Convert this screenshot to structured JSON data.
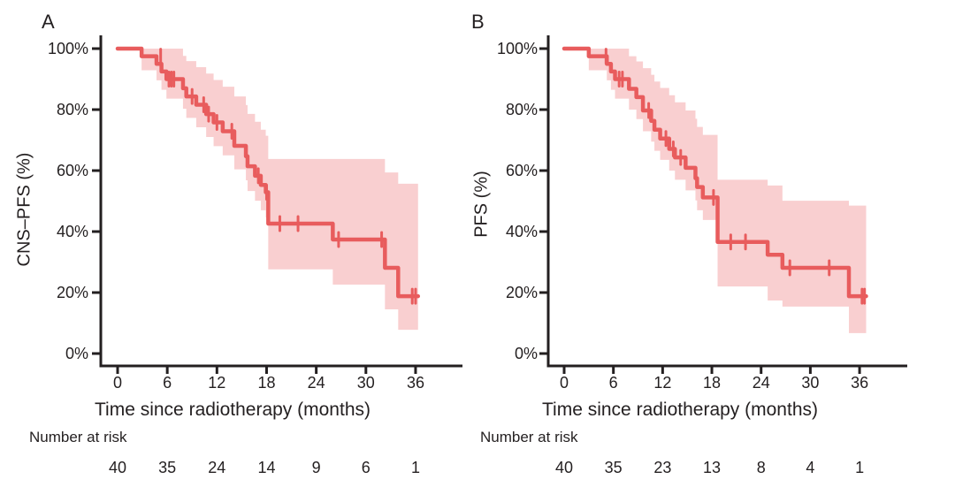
{
  "colors": {
    "curve": "#e85c5d",
    "band": "#f9cfd0",
    "axis": "#231f20",
    "text": "#231f20",
    "background": "#ffffff"
  },
  "chart_data": [
    {
      "type": "line",
      "subtype": "kaplan-meier-step",
      "panel_label": "A",
      "ylabel": "CNS–PFS (%)",
      "xlabel": "Time since radiotherapy (months)",
      "xlim": [
        0,
        36
      ],
      "ylim": [
        0,
        100
      ],
      "xticks": [
        0,
        6,
        12,
        18,
        24,
        30,
        36
      ],
      "yticks": [
        100,
        80,
        60,
        40,
        20,
        0
      ],
      "ytick_labels": [
        "100%",
        "80%",
        "60%",
        "40%",
        "20%",
        "0%"
      ],
      "grid": false,
      "steps": [
        [
          0,
          100
        ],
        [
          2.9,
          97.5
        ],
        [
          4.7,
          95
        ],
        [
          5.3,
          92.5
        ],
        [
          5.9,
          90
        ],
        [
          7.9,
          87
        ],
        [
          8.3,
          84.3
        ],
        [
          9.5,
          81.6
        ],
        [
          10.7,
          78.5
        ],
        [
          11.6,
          75.8
        ],
        [
          12.7,
          72.9
        ],
        [
          14.1,
          68.1
        ],
        [
          15.5,
          64.7
        ],
        [
          15.7,
          61.4
        ],
        [
          16.6,
          58.3
        ],
        [
          17.3,
          55.3
        ],
        [
          17.9,
          52.9
        ],
        [
          18.2,
          42.6
        ],
        [
          26,
          37.4
        ],
        [
          32.3,
          28.1
        ],
        [
          33.9,
          18.8
        ]
      ],
      "curve_end_t": 36.3,
      "censors": [
        [
          5.2,
          97.5
        ],
        [
          6.2,
          90
        ],
        [
          6.5,
          90
        ],
        [
          6.8,
          90
        ],
        [
          9,
          84.3
        ],
        [
          10.4,
          81.6
        ],
        [
          11,
          78.5
        ],
        [
          12,
          75.8
        ],
        [
          13.8,
          72.9
        ],
        [
          17,
          58.3
        ],
        [
          18,
          52.9
        ],
        [
          19.6,
          42.6
        ],
        [
          21.8,
          42.6
        ],
        [
          26.7,
          37.4
        ],
        [
          31.9,
          37.4
        ],
        [
          35.6,
          18.8
        ],
        [
          36,
          18.8
        ]
      ],
      "band": [
        [
          2.9,
          100,
          92.9
        ],
        [
          4.7,
          100,
          89.6
        ],
        [
          5.3,
          100,
          86.5
        ],
        [
          5.9,
          100,
          83.6
        ],
        [
          7.9,
          97.6,
          80.3
        ],
        [
          8.3,
          95.9,
          77.3
        ],
        [
          9.5,
          93.9,
          74.2
        ],
        [
          10.7,
          91.8,
          71
        ],
        [
          11.6,
          89.7,
          68
        ],
        [
          12.7,
          87.5,
          65
        ],
        [
          14.1,
          84.3,
          60.4
        ],
        [
          15.5,
          81.5,
          56.8
        ],
        [
          15.7,
          78.6,
          53.3
        ],
        [
          16.6,
          76,
          50.1
        ],
        [
          17.3,
          73.4,
          47
        ],
        [
          17.9,
          71.4,
          44.6
        ],
        [
          18.2,
          63.8,
          27.6
        ],
        [
          26,
          63.8,
          22.6
        ],
        [
          32.3,
          59.4,
          14.5
        ],
        [
          33.9,
          55.7,
          7.8
        ]
      ],
      "band_end_t": 36.3,
      "number_at_risk": {
        "label": "Number at risk",
        "times": [
          0,
          6,
          12,
          18,
          24,
          30,
          36
        ],
        "counts": [
          40,
          35,
          24,
          14,
          9,
          6,
          1
        ]
      }
    },
    {
      "type": "line",
      "subtype": "kaplan-meier-step",
      "panel_label": "B",
      "ylabel": "PFS (%)",
      "xlabel": "Time since radiotherapy (months)",
      "xlim": [
        0,
        36
      ],
      "ylim": [
        0,
        100
      ],
      "xticks": [
        0,
        6,
        12,
        18,
        24,
        30,
        36
      ],
      "yticks": [
        100,
        80,
        60,
        40,
        20,
        0
      ],
      "ytick_labels": [
        "100%",
        "80%",
        "60%",
        "40%",
        "20%",
        "0%"
      ],
      "grid": false,
      "steps": [
        [
          0,
          100
        ],
        [
          3,
          97.5
        ],
        [
          5.2,
          95
        ],
        [
          5.7,
          92.5
        ],
        [
          6.2,
          90
        ],
        [
          7.9,
          86.8
        ],
        [
          8.8,
          84.1
        ],
        [
          9.6,
          79.7
        ],
        [
          10.6,
          76.3
        ],
        [
          11,
          73.4
        ],
        [
          11.7,
          70.5
        ],
        [
          12.8,
          67.1
        ],
        [
          13.5,
          64.3
        ],
        [
          14.8,
          60.9
        ],
        [
          16,
          57.5
        ],
        [
          16.2,
          54.6
        ],
        [
          16.9,
          51.2
        ],
        [
          18.7,
          36.6
        ],
        [
          24.8,
          32.4
        ],
        [
          26.6,
          28.1
        ],
        [
          34.7,
          18.8
        ]
      ],
      "curve_end_t": 36.8,
      "censors": [
        [
          5.1,
          97.5
        ],
        [
          6.7,
          90
        ],
        [
          7.1,
          90
        ],
        [
          10.3,
          79.7
        ],
        [
          12.4,
          70.5
        ],
        [
          13.3,
          67.1
        ],
        [
          14.2,
          64.3
        ],
        [
          18.2,
          51.2
        ],
        [
          20.3,
          36.6
        ],
        [
          22.1,
          36.6
        ],
        [
          27.5,
          28.1
        ],
        [
          32.3,
          28.1
        ],
        [
          36.3,
          18.8
        ],
        [
          36.6,
          18.8
        ]
      ],
      "band": [
        [
          3,
          100,
          92.9
        ],
        [
          5.2,
          100,
          89.6
        ],
        [
          5.7,
          100,
          86.5
        ],
        [
          6.2,
          100,
          83.6
        ],
        [
          7.9,
          97.5,
          80
        ],
        [
          8.8,
          95.8,
          76.9
        ],
        [
          9.6,
          93.6,
          72.9
        ],
        [
          10.6,
          91.4,
          69.5
        ],
        [
          11,
          89.2,
          66.5
        ],
        [
          11.7,
          87.1,
          63.5
        ],
        [
          12.8,
          84.7,
          60
        ],
        [
          13.5,
          82.4,
          57
        ],
        [
          14.8,
          79.7,
          53.5
        ],
        [
          16,
          77,
          50.2
        ],
        [
          16.2,
          74.3,
          47
        ],
        [
          16.9,
          71.7,
          43.8
        ],
        [
          18.7,
          57,
          22
        ],
        [
          24.8,
          55.1,
          17.4
        ],
        [
          26.6,
          50.1,
          15.4
        ],
        [
          34.7,
          48.5,
          6.7
        ]
      ],
      "band_end_t": 36.8,
      "number_at_risk": {
        "label": "Number at risk",
        "times": [
          0,
          6,
          12,
          18,
          24,
          30,
          36
        ],
        "counts": [
          40,
          35,
          23,
          13,
          8,
          4,
          1
        ]
      }
    }
  ]
}
